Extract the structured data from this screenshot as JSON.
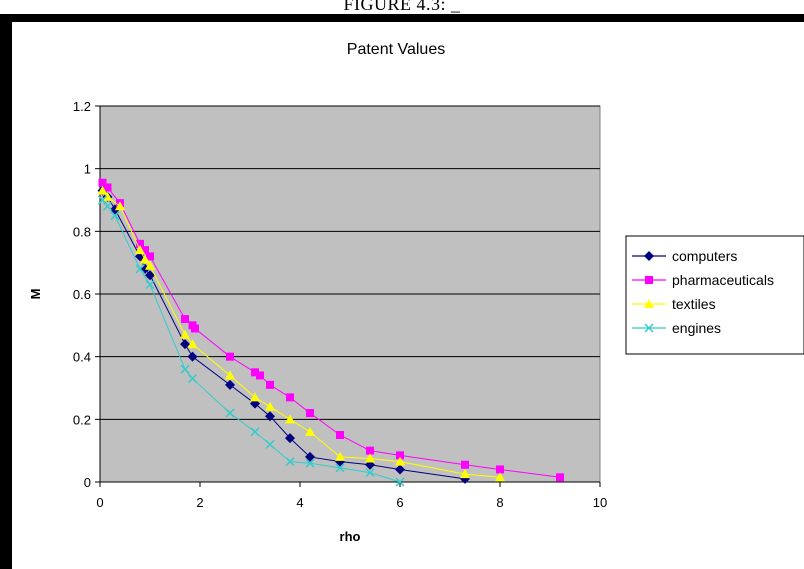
{
  "caption": "FIGURE 4.3:  _",
  "chart_data": {
    "type": "scatter",
    "title": "Patent Values",
    "xlabel": "rho",
    "ylabel": "M",
    "xlim": [
      0,
      10
    ],
    "ylim": [
      0,
      1.2
    ],
    "xticks": [
      "0",
      "2",
      "4",
      "6",
      "8",
      "10"
    ],
    "yticks": [
      "0",
      "0.2",
      "0.4",
      "0.6",
      "0.8",
      "1",
      "1.2"
    ],
    "grid": "horizontal",
    "plot_background": "#c0c0c0",
    "legend_position": "right",
    "series": [
      {
        "name": "computers",
        "color": "#000080",
        "marker": "diamond",
        "x": [
          0.05,
          0.15,
          0.3,
          0.8,
          0.9,
          1.0,
          1.7,
          1.85,
          2.6,
          3.1,
          3.4,
          3.8,
          4.2,
          4.8,
          5.4,
          6.0,
          7.3
        ],
        "y": [
          0.93,
          0.91,
          0.87,
          0.72,
          0.68,
          0.66,
          0.44,
          0.4,
          0.31,
          0.25,
          0.21,
          0.14,
          0.08,
          0.065,
          0.055,
          0.04,
          0.01
        ]
      },
      {
        "name": "pharmaceuticals",
        "color": "#ff00ff",
        "marker": "square",
        "x": [
          0.05,
          0.15,
          0.4,
          0.8,
          0.9,
          1.0,
          1.7,
          1.85,
          1.9,
          2.6,
          3.1,
          3.2,
          3.4,
          3.8,
          4.2,
          4.8,
          5.4,
          6.0,
          7.3,
          8.0,
          9.2
        ],
        "y": [
          0.955,
          0.94,
          0.89,
          0.76,
          0.74,
          0.72,
          0.52,
          0.5,
          0.49,
          0.4,
          0.35,
          0.34,
          0.31,
          0.27,
          0.22,
          0.15,
          0.1,
          0.085,
          0.055,
          0.04,
          0.015
        ]
      },
      {
        "name": "textiles",
        "color": "#ffff00",
        "marker": "triangle",
        "x": [
          0.05,
          0.15,
          0.4,
          0.8,
          0.9,
          1.0,
          1.7,
          1.85,
          2.6,
          3.1,
          3.4,
          3.8,
          4.2,
          4.8,
          5.4,
          6.0,
          7.3,
          8.0
        ],
        "y": [
          0.93,
          0.91,
          0.88,
          0.74,
          0.71,
          0.69,
          0.47,
          0.44,
          0.34,
          0.27,
          0.24,
          0.2,
          0.16,
          0.08,
          0.075,
          0.065,
          0.025,
          0.015
        ]
      },
      {
        "name": "engines",
        "color": "#33cccc",
        "marker": "x",
        "x": [
          0.05,
          0.15,
          0.3,
          0.8,
          1.0,
          1.7,
          1.85,
          2.6,
          3.1,
          3.4,
          3.8,
          4.2,
          4.8,
          5.4,
          6.0
        ],
        "y": [
          0.9,
          0.88,
          0.85,
          0.68,
          0.63,
          0.36,
          0.33,
          0.22,
          0.16,
          0.12,
          0.065,
          0.06,
          0.045,
          0.03,
          0.0
        ]
      }
    ]
  }
}
